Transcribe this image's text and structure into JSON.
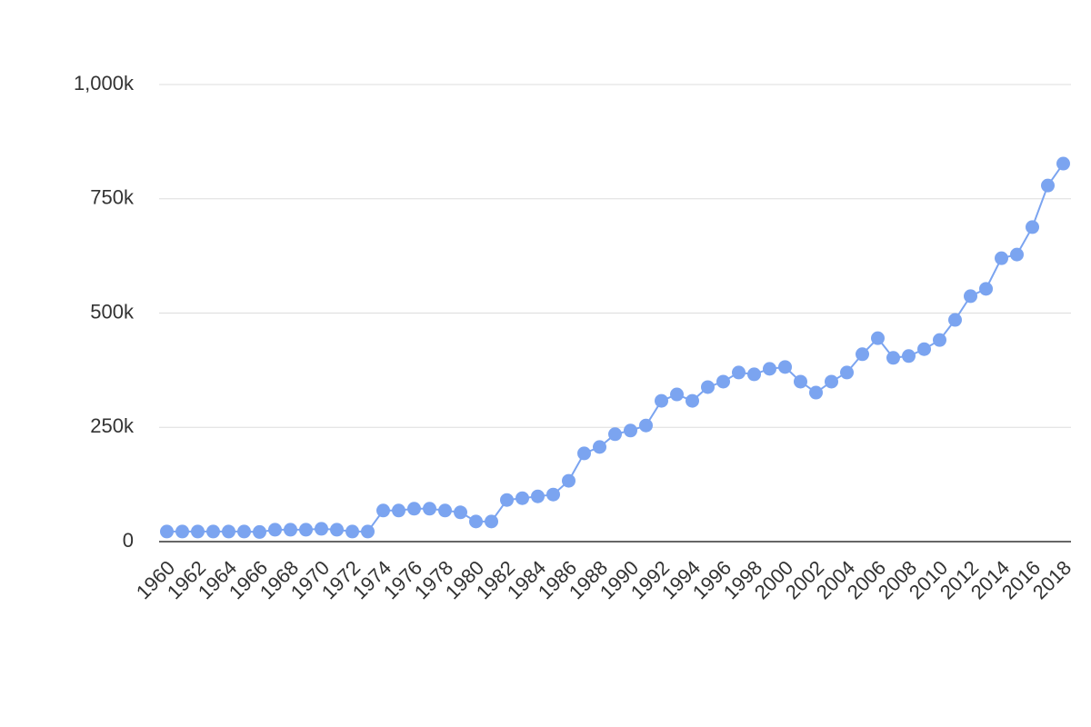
{
  "chart_data": {
    "type": "line",
    "x": [
      1960,
      1961,
      1962,
      1963,
      1964,
      1965,
      1966,
      1967,
      1968,
      1969,
      1970,
      1971,
      1972,
      1973,
      1974,
      1975,
      1976,
      1977,
      1978,
      1979,
      1980,
      1981,
      1982,
      1983,
      1984,
      1985,
      1986,
      1987,
      1988,
      1989,
      1990,
      1991,
      1992,
      1993,
      1994,
      1995,
      1996,
      1997,
      1998,
      1999,
      2000,
      2001,
      2002,
      2003,
      2004,
      2005,
      2006,
      2007,
      2008,
      2009,
      2010,
      2011,
      2012,
      2013,
      2014,
      2015,
      2016,
      2017,
      2018
    ],
    "values": [
      22000,
      22000,
      22000,
      22000,
      22000,
      22000,
      21000,
      26000,
      26000,
      26000,
      28000,
      26000,
      22000,
      22000,
      68000,
      68000,
      72000,
      72000,
      68000,
      64000,
      44000,
      44000,
      91000,
      95000,
      99000,
      103000,
      133000,
      193000,
      207000,
      235000,
      243000,
      254000,
      308000,
      322000,
      308000,
      338000,
      350000,
      370000,
      366000,
      378000,
      382000,
      350000,
      326000,
      350000,
      370000,
      410000,
      445000,
      402000,
      406000,
      421000,
      441000,
      485000,
      537000,
      553000,
      620000,
      628000,
      688000,
      779000,
      827000
    ],
    "color": "#7ba4f0",
    "xlim": [
      1959.5,
      2018.5
    ],
    "xticks": [
      1960,
      1962,
      1964,
      1966,
      1968,
      1970,
      1972,
      1974,
      1976,
      1978,
      1980,
      1982,
      1984,
      1986,
      1988,
      1990,
      1992,
      1994,
      1996,
      1998,
      2000,
      2002,
      2004,
      2006,
      2008,
      2010,
      2012,
      2014,
      2016,
      2018
    ],
    "ylim": [
      0,
      1000000
    ],
    "yticks": [
      0,
      {
        "value": 250000,
        "label": "250k"
      },
      {
        "value": 500000,
        "label": "500k"
      },
      {
        "value": 750000,
        "label": "750k"
      },
      {
        "value": 1000000,
        "label": "1,000k"
      }
    ],
    "grid": true
  }
}
